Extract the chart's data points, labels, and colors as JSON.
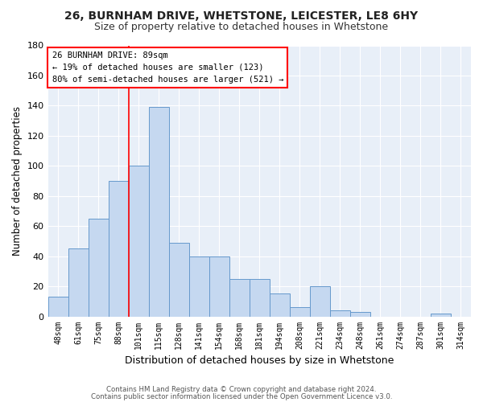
{
  "title1": "26, BURNHAM DRIVE, WHETSTONE, LEICESTER, LE8 6HY",
  "title2": "Size of property relative to detached houses in Whetstone",
  "xlabel": "Distribution of detached houses by size in Whetstone",
  "ylabel": "Number of detached properties",
  "bar_labels": [
    "48sqm",
    "61sqm",
    "75sqm",
    "88sqm",
    "101sqm",
    "115sqm",
    "128sqm",
    "141sqm",
    "154sqm",
    "168sqm",
    "181sqm",
    "194sqm",
    "208sqm",
    "221sqm",
    "234sqm",
    "248sqm",
    "261sqm",
    "274sqm",
    "287sqm",
    "301sqm",
    "314sqm"
  ],
  "bar_values": [
    13,
    45,
    65,
    90,
    100,
    139,
    49,
    40,
    40,
    25,
    25,
    15,
    6,
    20,
    4,
    3,
    0,
    0,
    0,
    2,
    0
  ],
  "bar_color": "#c5d8f0",
  "bar_edge_color": "#6699cc",
  "vline_x_index": 3.5,
  "vline_color": "red",
  "annotation_line1": "26 BURNHAM DRIVE: 89sqm",
  "annotation_line2": "← 19% of detached houses are smaller (123)",
  "annotation_line3": "80% of semi-detached houses are larger (521) →",
  "ylim": [
    0,
    180
  ],
  "yticks": [
    0,
    20,
    40,
    60,
    80,
    100,
    120,
    140,
    160,
    180
  ],
  "ax_background_color": "#e8eff8",
  "fig_background_color": "#ffffff",
  "grid_color": "#ffffff",
  "footer1": "Contains HM Land Registry data © Crown copyright and database right 2024.",
  "footer2": "Contains public sector information licensed under the Open Government Licence v3.0."
}
